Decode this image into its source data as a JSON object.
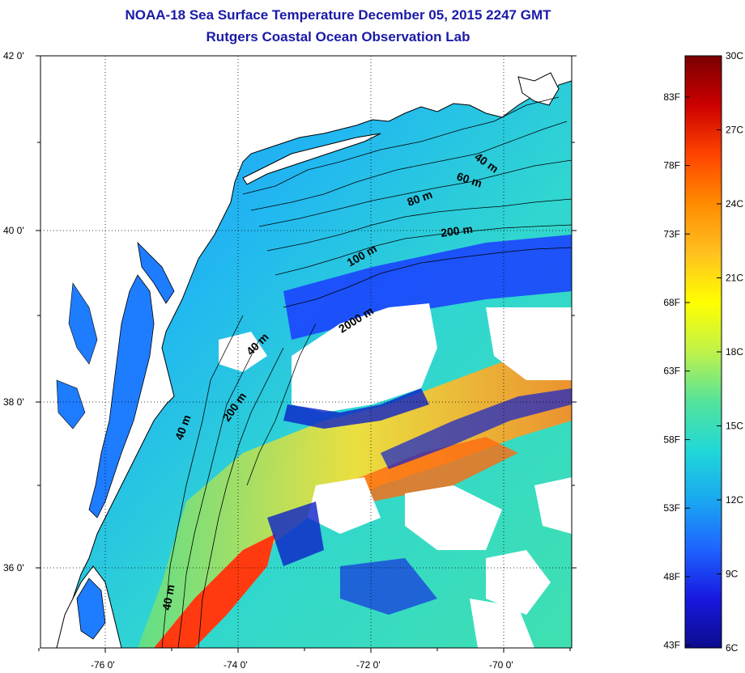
{
  "title": "NOAA-18 Sea Surface Temperature December 05, 2015 2247 GMT",
  "subtitle": "Rutgers Coastal Ocean Observation Lab",
  "map": {
    "lat_ticks": [
      "42 0'",
      "40 0'",
      "38 0'",
      "36 0'"
    ],
    "lon_ticks": [
      "-76 0'",
      "-74 0'",
      "-72 0'",
      "-70 0'"
    ],
    "contour_labels": [
      "40 m",
      "60 m",
      "80 m",
      "200 m",
      "100 m",
      "2000 m",
      "40 m",
      "200 m",
      "40 m",
      "40 m"
    ],
    "colors": {
      "land": "#ffffff",
      "cold": "#1a1aff",
      "mid": "#22ccdd",
      "warm": "#ffdd22",
      "hot": "#ff3300",
      "coastline": "#000000"
    }
  },
  "colorbar": {
    "fahrenheit_labels": [
      "83F",
      "78F",
      "73F",
      "68F",
      "63F",
      "58F",
      "53F",
      "48F",
      "43F"
    ],
    "celsius_labels": [
      "30C",
      "27C",
      "24C",
      "21C",
      "18C",
      "15C",
      "12C",
      "9C",
      "6C"
    ],
    "colors": [
      "#7a0000",
      "#cc0000",
      "#ff4400",
      "#ff8c00",
      "#ffc020",
      "#ffff00",
      "#bff24a",
      "#55e39a",
      "#20d8d8",
      "#1aa8f0",
      "#1e64ff",
      "#1818e0",
      "#0c0c8c"
    ]
  }
}
